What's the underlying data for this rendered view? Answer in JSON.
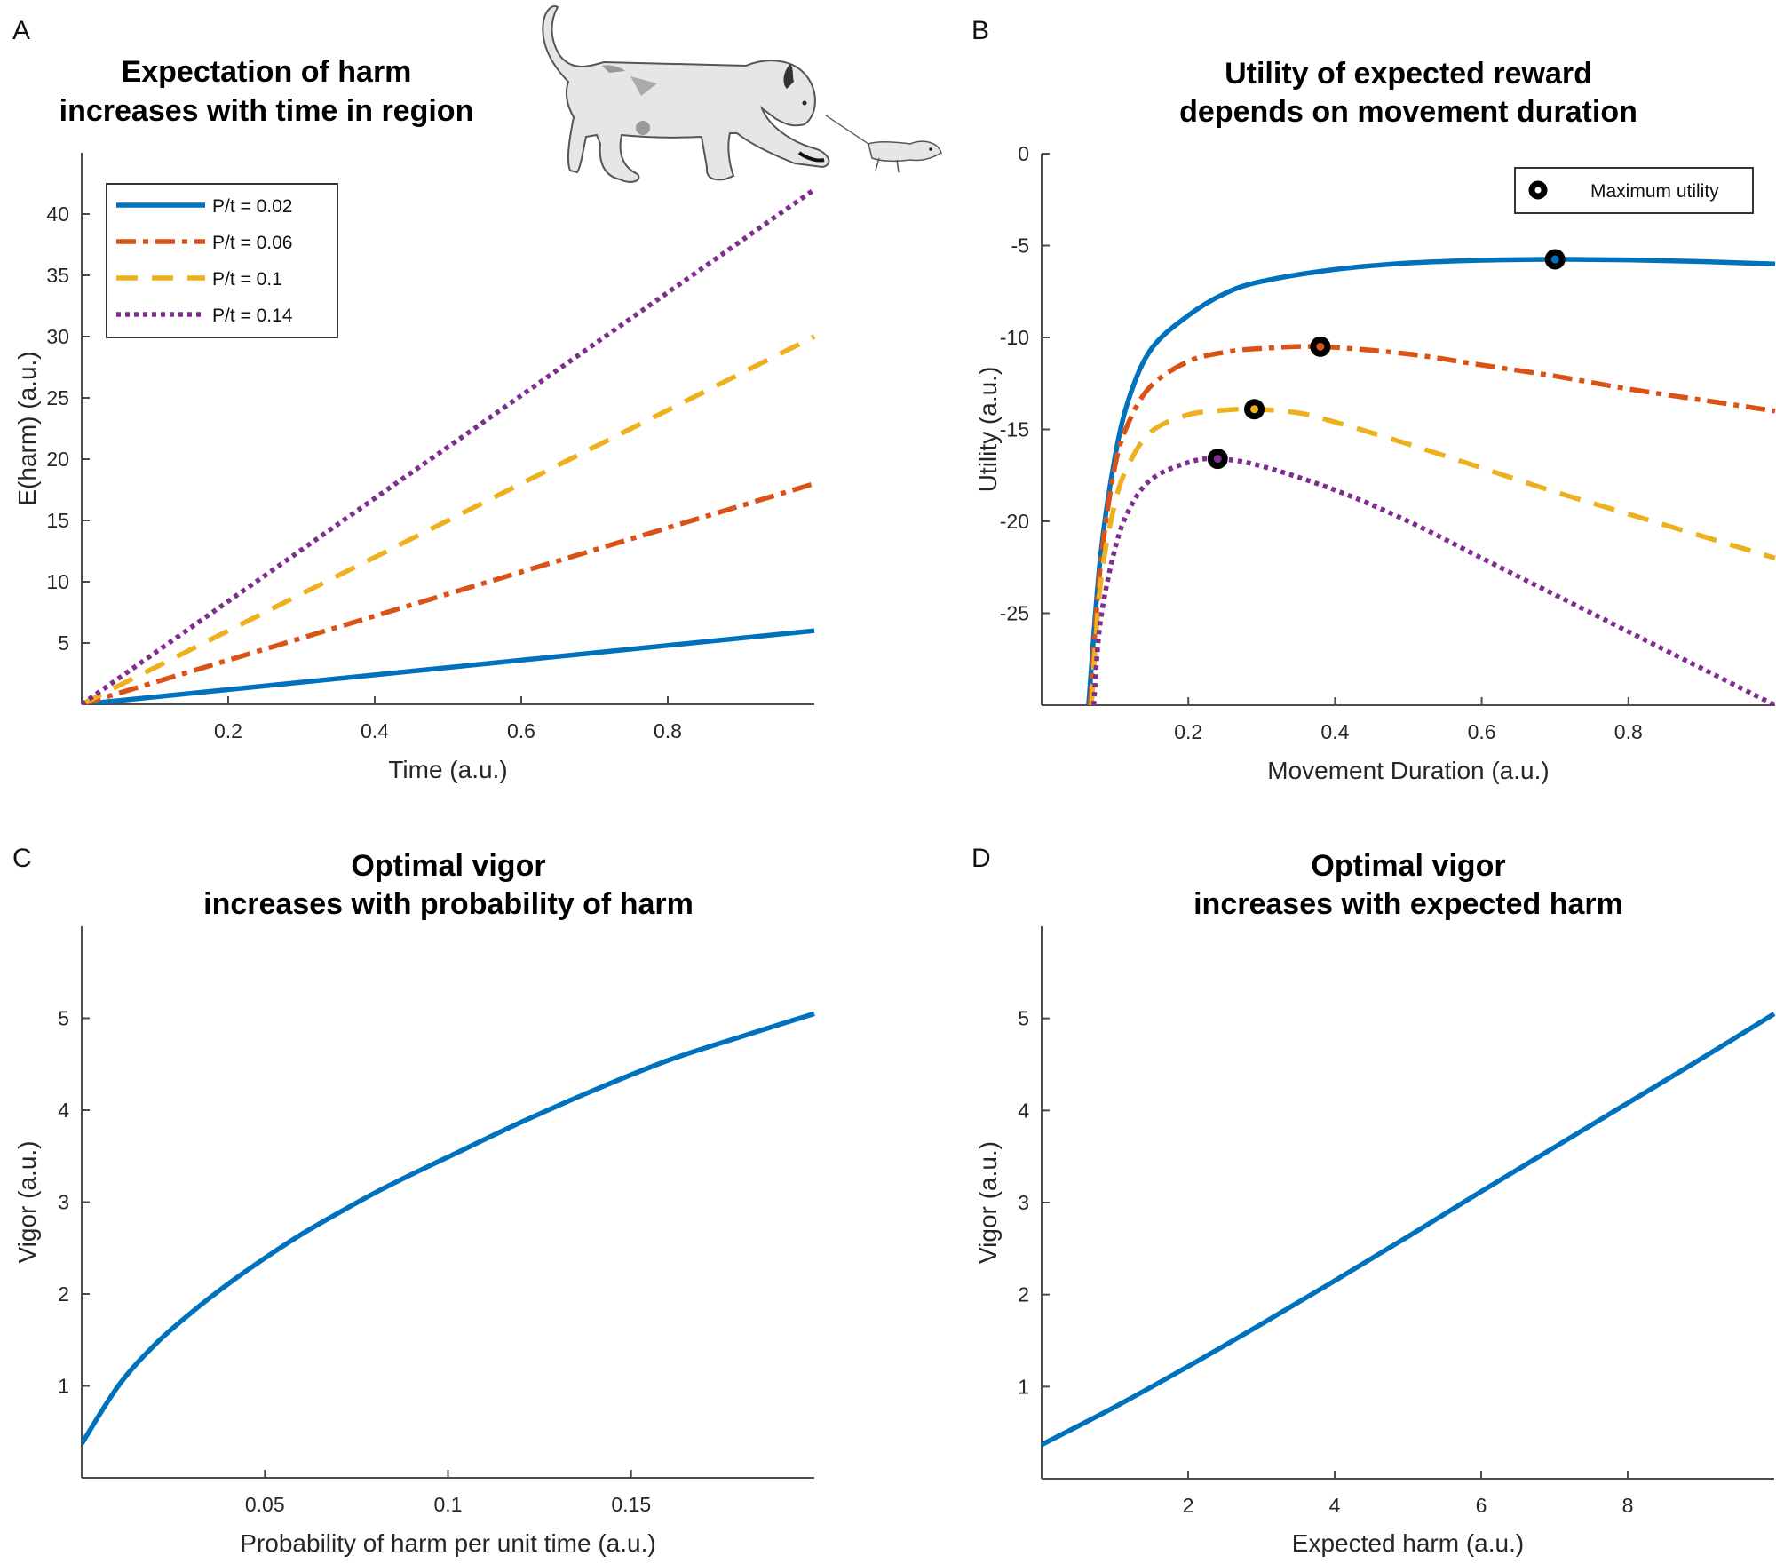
{
  "figure": {
    "panels": [
      "A",
      "B",
      "C",
      "D"
    ]
  },
  "illustration": {
    "description": "cat stalking mouse",
    "icons": [
      "cat-illustration",
      "mouse-illustration"
    ]
  },
  "chart_data": [
    {
      "panel": "A",
      "type": "line",
      "title": [
        "Expectation of harm",
        "increases with time in region"
      ],
      "xlabel": "Time (a.u.)",
      "ylabel": "E(harm) (a.u.)",
      "xlim": [
        0,
        1
      ],
      "ylim": [
        0,
        45
      ],
      "xticks": [
        0.2,
        0.4,
        0.6,
        0.8
      ],
      "xtick_labels": [
        "0.2",
        "0.4",
        "0.6",
        "0.8"
      ],
      "yticks": [
        5,
        10,
        15,
        20,
        25,
        30,
        35,
        40
      ],
      "ytick_labels": [
        "5",
        "10",
        "15",
        "20",
        "25",
        "30",
        "35",
        "40"
      ],
      "grid": false,
      "legend": {
        "position": "top-left",
        "entries": [
          "P/t = 0.02",
          "P/t = 0.06",
          "P/t = 0.1",
          "P/t = 0.14"
        ]
      },
      "series": [
        {
          "name": "P/t = 0.02",
          "color": "#0072BD",
          "style": "solid",
          "x": [
            0,
            1
          ],
          "y": [
            0,
            6
          ]
        },
        {
          "name": "P/t = 0.06",
          "color": "#D95319",
          "style": "dashdot",
          "x": [
            0,
            1
          ],
          "y": [
            0,
            18
          ]
        },
        {
          "name": "P/t = 0.1",
          "color": "#EDB120",
          "style": "dashed",
          "x": [
            0,
            1
          ],
          "y": [
            0,
            30
          ]
        },
        {
          "name": "P/t = 0.14",
          "color": "#7E2F8E",
          "style": "dotted",
          "x": [
            0,
            1
          ],
          "y": [
            0,
            42
          ]
        }
      ]
    },
    {
      "panel": "B",
      "type": "line",
      "title": [
        "Utility of expected reward",
        "depends on movement duration"
      ],
      "xlabel": "Movement Duration (a.u.)",
      "ylabel": "Utility (a.u.)",
      "xlim": [
        0,
        1
      ],
      "ylim": [
        -30,
        0
      ],
      "xticks": [
        0.2,
        0.4,
        0.6,
        0.8
      ],
      "xtick_labels": [
        "0.2",
        "0.4",
        "0.6",
        "0.8"
      ],
      "yticks": [
        0,
        -5,
        -10,
        -15,
        -20,
        -25
      ],
      "ytick_labels": [
        "0",
        "-5",
        "-10",
        "-15",
        "-20",
        "-25"
      ],
      "grid": false,
      "legend": {
        "position": "top-right",
        "entries": [
          "Maximum utility"
        ]
      },
      "series": [
        {
          "name": "P/t = 0.02",
          "color": "#0072BD",
          "style": "solid",
          "x": [
            0.064,
            0.08,
            0.1,
            0.12,
            0.15,
            0.2,
            0.25,
            0.3,
            0.4,
            0.5,
            0.6,
            0.7,
            0.8,
            0.9,
            1.0
          ],
          "y": [
            -30,
            -22,
            -16.5,
            -13.2,
            -10.6,
            -8.8,
            -7.6,
            -6.95,
            -6.3,
            -5.95,
            -5.8,
            -5.75,
            -5.78,
            -5.87,
            -6.0
          ]
        },
        {
          "name": "P/t = 0.06",
          "color": "#D95319",
          "style": "dashdot",
          "x": [
            0.066,
            0.08,
            0.1,
            0.12,
            0.15,
            0.2,
            0.25,
            0.3,
            0.38,
            0.5,
            0.6,
            0.7,
            0.8,
            0.9,
            1.0
          ],
          "y": [
            -30,
            -22.5,
            -17,
            -14.5,
            -12.6,
            -11.3,
            -10.8,
            -10.6,
            -10.5,
            -10.9,
            -11.5,
            -12.1,
            -12.8,
            -13.4,
            -14.0
          ]
        },
        {
          "name": "P/t = 0.1",
          "color": "#EDB120",
          "style": "dashed",
          "x": [
            0.068,
            0.08,
            0.1,
            0.12,
            0.15,
            0.2,
            0.25,
            0.29,
            0.35,
            0.4,
            0.5,
            0.6,
            0.7,
            0.8,
            0.9,
            1.0
          ],
          "y": [
            -30,
            -23.5,
            -19,
            -16.8,
            -15.1,
            -14.2,
            -13.95,
            -13.9,
            -14.1,
            -14.6,
            -15.8,
            -17.1,
            -18.4,
            -19.6,
            -20.8,
            -22.0
          ]
        },
        {
          "name": "P/t = 0.14",
          "color": "#7E2F8E",
          "style": "dotted",
          "x": [
            0.071,
            0.08,
            0.1,
            0.12,
            0.15,
            0.2,
            0.24,
            0.3,
            0.4,
            0.5,
            0.6,
            0.7,
            0.8,
            0.9,
            1.0
          ],
          "y": [
            -30,
            -25.5,
            -21.5,
            -19.3,
            -17.7,
            -16.8,
            -16.6,
            -17.0,
            -18.3,
            -20.0,
            -22.0,
            -24.0,
            -26.0,
            -28.0,
            -30.0
          ]
        }
      ],
      "maxima": [
        {
          "series": "P/t = 0.02",
          "x": 0.7,
          "y": -5.75
        },
        {
          "series": "P/t = 0.06",
          "x": 0.38,
          "y": -10.5
        },
        {
          "series": "P/t = 0.1",
          "x": 0.29,
          "y": -13.9
        },
        {
          "series": "P/t = 0.14",
          "x": 0.24,
          "y": -16.6
        }
      ]
    },
    {
      "panel": "C",
      "type": "line",
      "title": [
        "Optimal vigor",
        "increases with probability of harm"
      ],
      "xlabel": "Probability of harm per unit time (a.u.)",
      "ylabel": "Vigor (a.u.)",
      "xlim": [
        0,
        0.2
      ],
      "ylim": [
        0,
        6
      ],
      "xticks": [
        0.05,
        0.1,
        0.15
      ],
      "xtick_labels": [
        "0.05",
        "0.1",
        "0.15"
      ],
      "yticks": [
        1,
        2,
        3,
        4,
        5
      ],
      "ytick_labels": [
        "1",
        "2",
        "3",
        "4",
        "5"
      ],
      "grid": false,
      "series": [
        {
          "name": "vigor",
          "color": "#0072BD",
          "style": "solid",
          "x": [
            0,
            0.01,
            0.02,
            0.03,
            0.04,
            0.05,
            0.06,
            0.07,
            0.08,
            0.09,
            0.1,
            0.12,
            0.14,
            0.16,
            0.18,
            0.2
          ],
          "y": [
            0.37,
            1.0,
            1.45,
            1.8,
            2.11,
            2.39,
            2.65,
            2.88,
            3.1,
            3.3,
            3.49,
            3.87,
            4.22,
            4.54,
            4.8,
            5.05
          ]
        }
      ]
    },
    {
      "panel": "D",
      "type": "line",
      "title": [
        "Optimal vigor",
        "increases with expected harm"
      ],
      "xlabel": "Expected harm (a.u.)",
      "ylabel": "Vigor (a.u.)",
      "xlim": [
        0,
        10
      ],
      "ylim": [
        0,
        6
      ],
      "xticks": [
        2,
        4,
        6,
        8
      ],
      "xtick_labels": [
        "2",
        "4",
        "6",
        "8"
      ],
      "yticks": [
        1,
        2,
        3,
        4,
        5
      ],
      "ytick_labels": [
        "1",
        "2",
        "3",
        "4",
        "5"
      ],
      "grid": false,
      "series": [
        {
          "name": "vigor",
          "color": "#0072BD",
          "style": "solid",
          "x": [
            0,
            1,
            2,
            3,
            4,
            5,
            6,
            7,
            8,
            9,
            10
          ],
          "y": [
            0.37,
            0.78,
            1.22,
            1.68,
            2.15,
            2.63,
            3.12,
            3.6,
            4.08,
            4.56,
            5.05
          ]
        }
      ]
    }
  ]
}
